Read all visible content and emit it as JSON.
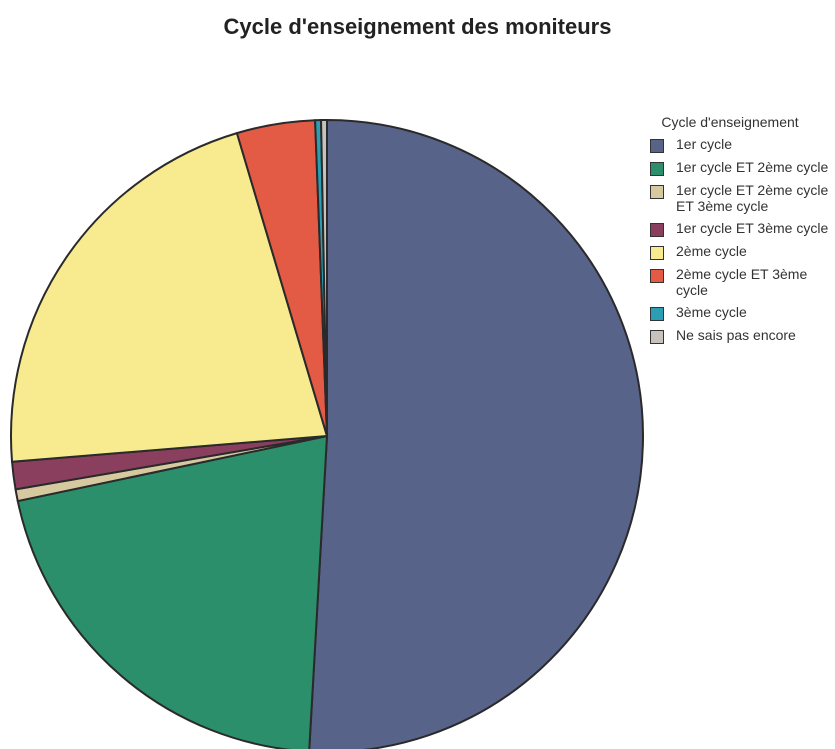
{
  "chart_data": {
    "type": "pie",
    "title": "Cycle d'enseignement des moniteurs",
    "legend_title": "Cycle d'enseignement",
    "categories": [
      "1er cycle",
      "1er cycle ET 2ème cycle",
      "1er cycle ET 2ème cycle ET 3ème cycle",
      "1er cycle ET 3ème cycle",
      "2ème cycle",
      "2ème cycle ET 3ème cycle",
      "3ème cycle",
      "Ne sais pas encore"
    ],
    "values": [
      50.9,
      20.8,
      0.6,
      1.4,
      21.7,
      4.0,
      0.3,
      0.3
    ],
    "colors": [
      "#58638a",
      "#2a8f6a",
      "#d6c9a0",
      "#8b3f5e",
      "#f8eb8f",
      "#e35a45",
      "#2b9eb3",
      "#c8c2bc"
    ],
    "legend": "right"
  }
}
